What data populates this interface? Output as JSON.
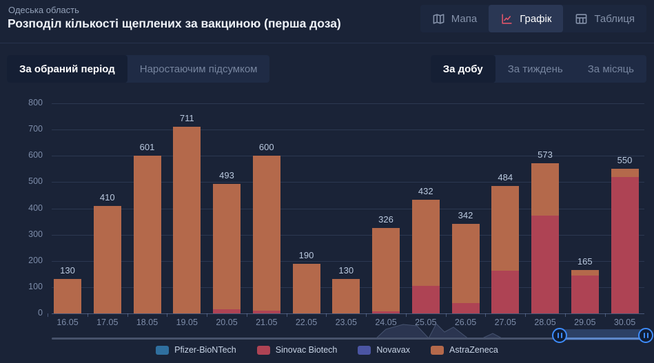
{
  "header": {
    "region": "Одеська область",
    "title": "Розподіл кількості щеплених за вакциною (перша доза)",
    "view_tabs": [
      {
        "label": "Мапа",
        "icon": "map-icon",
        "active": false
      },
      {
        "label": "Графік",
        "icon": "chart-icon",
        "active": true
      },
      {
        "label": "Таблиця",
        "icon": "table-icon",
        "active": false
      }
    ]
  },
  "controls": {
    "mode_toggle": [
      {
        "label": "За обраний період",
        "active": true
      },
      {
        "label": "Наростаючим підсумком",
        "active": false
      }
    ],
    "period_toggle": [
      {
        "label": "За добу",
        "active": true
      },
      {
        "label": "За тиждень",
        "active": false
      },
      {
        "label": "За місяць",
        "active": false
      }
    ]
  },
  "chart_data": {
    "type": "bar",
    "stacked": true,
    "title": "Розподіл кількості щеплених за вакциною (перша доза)",
    "xlabel": "",
    "ylabel": "",
    "categories": [
      "16.05",
      "17.05",
      "18.05",
      "19.05",
      "20.05",
      "21.05",
      "22.05",
      "23.05",
      "24.05",
      "25.05",
      "26.05",
      "27.05",
      "28.05",
      "29.05",
      "30.05"
    ],
    "series": [
      {
        "name": "Pfizer-BioNTech",
        "color": "#2f6f9f",
        "values": [
          0,
          0,
          0,
          0,
          0,
          0,
          0,
          0,
          0,
          0,
          0,
          0,
          0,
          0,
          0
        ]
      },
      {
        "name": "Sinovac Biotech",
        "color": "#ae4354",
        "values": [
          0,
          0,
          0,
          0,
          15,
          10,
          0,
          0,
          8,
          105,
          40,
          162,
          372,
          145,
          520
        ]
      },
      {
        "name": "Novavax",
        "color": "#4b55a3",
        "values": [
          0,
          0,
          0,
          0,
          0,
          0,
          0,
          0,
          0,
          0,
          0,
          0,
          0,
          0,
          0
        ]
      },
      {
        "name": "AstraZeneca",
        "color": "#b4694b",
        "values": [
          130,
          410,
          601,
          711,
          478,
          590,
          190,
          130,
          318,
          327,
          302,
          322,
          201,
          20,
          30
        ]
      }
    ],
    "totals": [
      130,
      410,
      601,
      711,
      493,
      600,
      190,
      130,
      326,
      432,
      342,
      484,
      573,
      165,
      550
    ],
    "ylim": [
      0,
      800
    ],
    "yticks": [
      0,
      100,
      200,
      300,
      400,
      500,
      600,
      700,
      800
    ],
    "grid": true,
    "legend_position": "bottom"
  },
  "navigator": {
    "left_handle_icon": "pause-icon",
    "right_handle_icon": "pause-icon",
    "accent_color": "#3e8cfb"
  },
  "colors": {
    "background": "#1a2337",
    "active_tab_bg": "#2a3754",
    "active_toggle_bg": "#151f34",
    "chart_icon_accent": "#e0556a"
  }
}
